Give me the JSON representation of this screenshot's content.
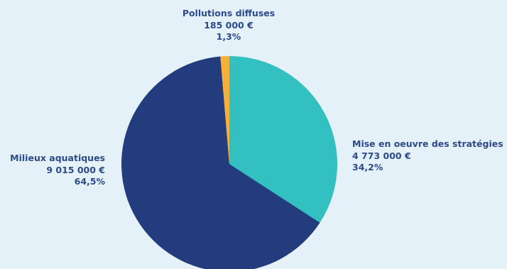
{
  "background_color": "#e4f1f8",
  "label_color": "#2d4a8a",
  "chart_data": {
    "type": "pie",
    "title": "",
    "slices": [
      {
        "name": "Mise en oeuvre des stratégies",
        "amount_label": "4 773 000 €",
        "percent_label": "34,2%",
        "value": 4773000,
        "percent": 34.2,
        "color": "#33c0c0"
      },
      {
        "name": "Milieux aquatiques",
        "amount_label": "9 015 000 €",
        "percent_label": "64,5%",
        "value": 9015000,
        "percent": 64.5,
        "color": "#233c7e"
      },
      {
        "name": "Pollutions diffuses",
        "amount_label": "185 000 €",
        "percent_label": "1,3%",
        "value": 185000,
        "percent": 1.3,
        "color": "#f5b03c"
      }
    ]
  }
}
